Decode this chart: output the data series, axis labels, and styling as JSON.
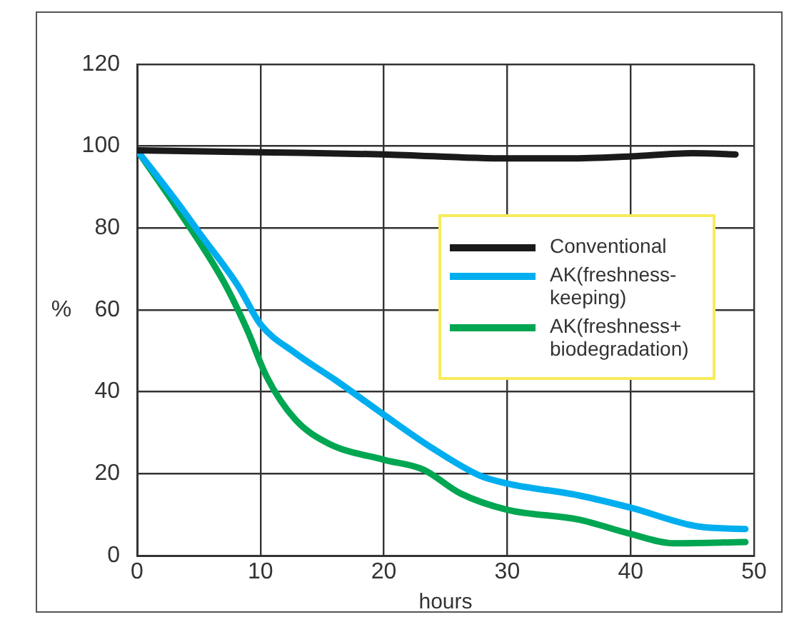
{
  "chart_data": {
    "type": "line",
    "xlabel": "hours",
    "ylabel": "%",
    "xlim": [
      0,
      50
    ],
    "xticks": [
      0,
      10,
      20,
      30,
      40,
      50
    ],
    "ylim": [
      0,
      120
    ],
    "yticks": [
      0,
      20,
      40,
      60,
      80,
      100,
      120
    ],
    "grid": true,
    "legend": "right",
    "marker": "none",
    "line_style": "solid",
    "series": [
      {
        "name": "Conventional",
        "color": "#1a1a1a",
        "x": [
          0,
          10,
          20,
          30,
          35,
          40,
          45,
          48.5
        ],
        "values": [
          99,
          98.5,
          98,
          97,
          97,
          97.5,
          98.3,
          98
        ]
      },
      {
        "name": "AK(freshness-keeping)",
        "color": "#00aeef",
        "x": [
          0,
          3.2,
          5.1,
          8.2,
          10,
          12.8,
          16.2,
          20,
          23.9,
          27.8,
          30,
          35.8,
          40,
          45.5,
          49.3
        ],
        "values": [
          99,
          86.5,
          78.6,
          65.8,
          56.5,
          49.5,
          42.6,
          34.4,
          26.3,
          19.5,
          17.6,
          14.7,
          11.7,
          7.1,
          6.5
        ]
      },
      {
        "name": "AK(freshness+ biodegradation)",
        "color": "#00a651",
        "x": [
          0,
          3.2,
          7,
          8.9,
          10.5,
          12.8,
          15.5,
          20,
          23.2,
          26.2,
          30,
          35.8,
          40,
          43.5,
          49.3
        ],
        "values": [
          99,
          85,
          67,
          55.3,
          43.7,
          33.3,
          27.4,
          23.4,
          21,
          15.2,
          11.2,
          8.8,
          5.3,
          3,
          3.3
        ]
      }
    ]
  }
}
